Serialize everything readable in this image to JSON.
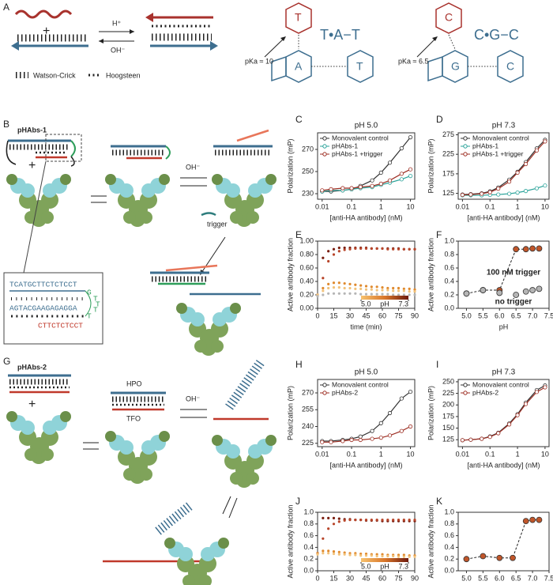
{
  "diagram": {
    "panel_labels": [
      "A",
      "B",
      "C",
      "D",
      "E",
      "F",
      "G",
      "H",
      "I",
      "J",
      "K"
    ],
    "a": {
      "plus": "+",
      "acid": "H⁺",
      "base": "OH⁻",
      "legend_wc": "Watson-Crick",
      "legend_hg": "Hoogsteen",
      "pka_t": "pKa ≈ 10",
      "pka_c": "pKa ≈ 6.5",
      "triplet_tat": "T•A−T",
      "triplet_cgc": "C•G−C",
      "bases_tat": [
        "T",
        "A",
        "T"
      ],
      "bases_cgc": [
        "C",
        "G",
        "C"
      ]
    },
    "b": {
      "name": "pHAbs-1",
      "plus": "+",
      "base": "OH⁻",
      "trigger": "trigger",
      "seq_top": "TCATGCTTCTCTCCT",
      "seq_mid": "AGTACGAAGAGAGGA",
      "seq_bottom": "CTTCTCTCCT",
      "loop": [
        "G",
        "T",
        "T",
        "T",
        "T"
      ]
    },
    "g": {
      "name": "pHAbs-2",
      "plus": "+",
      "base": "OH⁻",
      "hpo": "HPO",
      "tfo": "TFO"
    }
  },
  "chart_data": [
    {
      "type": "line",
      "title": "pH 5.0",
      "title_color": "#e0902a",
      "xlabel": "[anti-HA antibody] (nM)",
      "ylabel": "Polarization (mP)",
      "xscale": "log",
      "xlim": [
        0.007,
        14
      ],
      "xticks": [
        0.01,
        0.1,
        1,
        10
      ],
      "ylim": [
        225,
        285
      ],
      "yticks": [
        230,
        250,
        270
      ],
      "legend": "upper left",
      "x": [
        0.01,
        0.02,
        0.05,
        0.1,
        0.2,
        0.5,
        1,
        2,
        5,
        10
      ],
      "series": [
        {
          "name": "Monovalent control",
          "color": "#333333",
          "values": [
            232,
            232,
            233,
            234,
            237,
            242,
            249,
            258,
            271,
            281
          ]
        },
        {
          "name": "pHAbs-1",
          "color": "#2aa39a",
          "values": [
            232,
            233,
            233,
            234,
            235,
            236,
            238,
            240,
            243,
            246
          ]
        },
        {
          "name": "pHAbs-1 +trigger",
          "color": "#9e2f24",
          "values": [
            233,
            234,
            235,
            235,
            236,
            237,
            239,
            242,
            248,
            252
          ]
        }
      ]
    },
    {
      "type": "line",
      "title": "pH 7.3",
      "title_color": "#8b2a1a",
      "xlabel": "[anti-HA antibody] (nM)",
      "ylabel": "Polarization (mP)",
      "xscale": "log",
      "xlim": [
        0.007,
        14
      ],
      "xticks": [
        0.01,
        0.1,
        1,
        10
      ],
      "ylim": [
        110,
        280
      ],
      "yticks": [
        125,
        175,
        225,
        275
      ],
      "legend": "upper left",
      "x": [
        0.01,
        0.02,
        0.05,
        0.1,
        0.2,
        0.5,
        1,
        2,
        5,
        10
      ],
      "series": [
        {
          "name": "Monovalent control",
          "color": "#333333",
          "values": [
            122,
            123,
            125,
            130,
            140,
            160,
            180,
            205,
            240,
            262
          ]
        },
        {
          "name": "pHAbs-1",
          "color": "#2aa39a",
          "values": [
            120,
            120,
            120,
            121,
            122,
            124,
            127,
            131,
            138,
            145
          ]
        },
        {
          "name": "pHAbs-1 +trigger",
          "color": "#9e2f24",
          "values": [
            121,
            122,
            124,
            128,
            137,
            155,
            178,
            200,
            235,
            258
          ]
        }
      ]
    },
    {
      "type": "scatter",
      "xlabel": "time (min)",
      "ylabel": "Active antibody fraction",
      "xlim": [
        0,
        90
      ],
      "xticks": [
        0,
        15,
        30,
        45,
        60,
        75,
        90
      ],
      "ylim": [
        0,
        1
      ],
      "yticks": [
        {
          "value": 0,
          "label": "0.00"
        },
        {
          "value": 0.2,
          "label": "0.20"
        },
        {
          "value": 0.4,
          "label": "0.40"
        },
        {
          "value": 0.6,
          "label": "0.60"
        },
        {
          "value": 0.8,
          "label": "0.80"
        },
        {
          "value": 1,
          "label": "1.00"
        }
      ],
      "colorbar": {
        "label": "pH",
        "range": [
          {
            "value": 5,
            "label": "5.0"
          },
          {
            "value": 7.3,
            "label": "7.3"
          }
        ]
      },
      "x": [
        0,
        5,
        10,
        15,
        20,
        25,
        30,
        35,
        40,
        45,
        50,
        55,
        60,
        65,
        70,
        75,
        80,
        85,
        90
      ],
      "series": [
        {
          "color": "#7a1e10",
          "values": [
            0.2,
            0.75,
            0.85,
            0.88,
            0.9,
            0.9,
            0.9,
            0.9,
            0.9,
            0.9,
            0.89,
            0.89,
            0.89,
            0.89,
            0.89,
            0.89,
            0.88,
            0.88,
            0.88
          ]
        },
        {
          "color": "#b8452a",
          "values": [
            0.2,
            0.45,
            0.7,
            0.8,
            0.85,
            0.87,
            0.88,
            0.89,
            0.89,
            0.89,
            0.89,
            0.89,
            0.89,
            0.88,
            0.88,
            0.88,
            0.88,
            0.88,
            0.88
          ]
        },
        {
          "color": "#e08a2e",
          "values": [
            0.2,
            0.3,
            0.36,
            0.38,
            0.38,
            0.37,
            0.36,
            0.35,
            0.34,
            0.33,
            0.32,
            0.32,
            0.31,
            0.3,
            0.3,
            0.3,
            0.29,
            0.29,
            0.28
          ]
        },
        {
          "color": "#f2c27a",
          "values": [
            0.2,
            0.26,
            0.3,
            0.31,
            0.31,
            0.3,
            0.3,
            0.29,
            0.29,
            0.28,
            0.28,
            0.27,
            0.27,
            0.27,
            0.26,
            0.26,
            0.26,
            0.25,
            0.25
          ]
        },
        {
          "color": "#b5b5b5",
          "values": [
            0.18,
            0.2,
            0.22,
            0.22,
            0.22,
            0.22,
            0.22,
            0.22,
            0.21,
            0.21,
            0.21,
            0.21,
            0.21,
            0.21,
            0.2,
            0.2,
            0.2,
            0.2,
            0.2
          ]
        }
      ]
    },
    {
      "type": "scatter",
      "xlabel": "pH",
      "ylabel": "Active antibody fraction",
      "xlim": [
        4.75,
        7.5
      ],
      "xticks": [
        {
          "value": 5,
          "label": "5.0"
        },
        {
          "value": 5.5,
          "label": "5.5"
        },
        {
          "value": 6,
          "label": "6.0"
        },
        {
          "value": 6.5,
          "label": "6.5"
        },
        {
          "value": 7,
          "label": "7.0"
        },
        {
          "value": 7.5,
          "label": "7.5"
        }
      ],
      "ylim": [
        0,
        1
      ],
      "yticks": [
        {
          "value": 0,
          "label": "0.0"
        },
        0.2,
        0.4,
        0.6,
        0.8,
        {
          "value": 1,
          "label": "1.0"
        }
      ],
      "line_style": "dashed",
      "annotations": [
        {
          "text": "100 nM trigger",
          "color": "#8b1e1e"
        },
        {
          "text": "no trigger",
          "color": "#8a8a8a"
        }
      ],
      "series": [
        {
          "color": "#c0562a",
          "x": [
            5.0,
            5.5,
            6.0,
            6.5,
            6.8,
            7.0,
            7.2
          ],
          "values": [
            0.22,
            0.27,
            0.27,
            0.88,
            0.88,
            0.89,
            0.89
          ]
        },
        {
          "color": "#b5b5b5",
          "x": [
            5.0,
            5.5,
            6.0,
            6.5,
            6.8,
            7.0,
            7.2
          ],
          "values": [
            0.22,
            0.27,
            0.23,
            0.2,
            0.25,
            0.27,
            0.29
          ]
        }
      ]
    },
    {
      "type": "line",
      "title": "pH 5.0",
      "title_color": "#e0902a",
      "xlabel": "[anti-HA antibody] (nM)",
      "ylabel": "Polarization (mP)",
      "xscale": "log",
      "xlim": [
        0.007,
        14
      ],
      "xticks": [
        0.01,
        0.1,
        1,
        10
      ],
      "ylim": [
        222,
        282
      ],
      "yticks": [
        225,
        240,
        255,
        270
      ],
      "legend": "upper left",
      "x": [
        0.01,
        0.02,
        0.05,
        0.1,
        0.2,
        0.5,
        1,
        2,
        5,
        10
      ],
      "series": [
        {
          "name": "Monovalent control",
          "color": "#333333",
          "values": [
            227,
            227,
            228,
            229,
            231,
            236,
            243,
            252,
            265,
            271
          ]
        },
        {
          "name": "pHAbs-2",
          "color": "#9e2f24",
          "values": [
            226,
            226,
            227,
            228,
            228,
            229,
            230,
            232,
            236,
            240
          ]
        }
      ]
    },
    {
      "type": "line",
      "title": "pH 7.3",
      "title_color": "#8b2a1a",
      "xlabel": "[anti-HA antibody] (nM)",
      "ylabel": "Polarization (mP)",
      "xscale": "log",
      "xlim": [
        0.007,
        14
      ],
      "xticks": [
        0.01,
        0.1,
        1,
        10
      ],
      "ylim": [
        110,
        255
      ],
      "yticks": [
        125,
        150,
        175,
        200,
        225,
        250
      ],
      "legend": "upper left",
      "x": [
        0.01,
        0.02,
        0.05,
        0.1,
        0.2,
        0.5,
        1,
        2,
        5,
        10
      ],
      "series": [
        {
          "name": "Monovalent control",
          "color": "#333333",
          "values": [
            124,
            125,
            127,
            132,
            140,
            160,
            180,
            205,
            232,
            242
          ]
        },
        {
          "name": "pHAbs-2",
          "color": "#9e2f24",
          "values": [
            124,
            125,
            127,
            131,
            139,
            158,
            178,
            202,
            228,
            238
          ]
        }
      ]
    },
    {
      "type": "scatter",
      "xlabel": "time (min)",
      "ylabel": "Active antibody fraction",
      "xlim": [
        0,
        90
      ],
      "xticks": [
        0,
        15,
        30,
        45,
        60,
        75,
        90
      ],
      "ylim": [
        0,
        1
      ],
      "yticks": [
        {
          "value": 0,
          "label": "0.0"
        },
        0.2,
        0.4,
        0.6,
        0.8,
        {
          "value": 1,
          "label": "1.0"
        }
      ],
      "colorbar": {
        "label": "pH",
        "range": [
          {
            "value": 5,
            "label": "5.0"
          },
          {
            "value": 7.3,
            "label": "7.3"
          }
        ]
      },
      "x": [
        0,
        5,
        10,
        15,
        20,
        25,
        30,
        35,
        40,
        45,
        50,
        55,
        60,
        65,
        70,
        75,
        80,
        85,
        90
      ],
      "series": [
        {
          "color": "#7a1e10",
          "values": [
            0.3,
            0.9,
            0.9,
            0.9,
            0.89,
            0.88,
            0.88,
            0.87,
            0.87,
            0.86,
            0.86,
            0.86,
            0.85,
            0.85,
            0.85,
            0.85,
            0.85,
            0.85,
            0.85
          ]
        },
        {
          "color": "#b8452a",
          "values": [
            0.3,
            0.55,
            0.72,
            0.8,
            0.84,
            0.86,
            0.87,
            0.87,
            0.87,
            0.87,
            0.87,
            0.87,
            0.87,
            0.87,
            0.87,
            0.87,
            0.87,
            0.87,
            0.87
          ]
        },
        {
          "color": "#e08a2e",
          "values": [
            0.3,
            0.34,
            0.34,
            0.33,
            0.32,
            0.31,
            0.3,
            0.3,
            0.29,
            0.29,
            0.28,
            0.28,
            0.28,
            0.27,
            0.27,
            0.27,
            0.27,
            0.26,
            0.26
          ]
        },
        {
          "color": "#f2c27a",
          "values": [
            0.28,
            0.3,
            0.3,
            0.29,
            0.28,
            0.28,
            0.27,
            0.27,
            0.26,
            0.26,
            0.26,
            0.25,
            0.25,
            0.25,
            0.25,
            0.24,
            0.24,
            0.24,
            0.24
          ]
        }
      ]
    },
    {
      "type": "scatter",
      "xlabel": "pH",
      "ylabel": "Active antibody fraction",
      "xlim": [
        4.75,
        7.5
      ],
      "xticks": [
        {
          "value": 5,
          "label": "5.0"
        },
        {
          "value": 5.5,
          "label": "5.5"
        },
        {
          "value": 6,
          "label": "6.0"
        },
        {
          "value": 6.5,
          "label": "6.5"
        },
        {
          "value": 7,
          "label": "7.0"
        },
        {
          "value": 7.5,
          "label": "7.5"
        }
      ],
      "ylim": [
        0,
        1
      ],
      "yticks": [
        {
          "value": 0,
          "label": "0.0"
        },
        0.2,
        0.4,
        0.6,
        0.8,
        {
          "value": 1,
          "label": "1.0"
        }
      ],
      "line_style": "dashed",
      "series": [
        {
          "color": "#c0562a",
          "x": [
            5.0,
            5.5,
            6.0,
            6.4,
            6.8,
            7.0,
            7.2
          ],
          "values": [
            0.2,
            0.25,
            0.22,
            0.22,
            0.85,
            0.87,
            0.87
          ]
        }
      ]
    }
  ]
}
